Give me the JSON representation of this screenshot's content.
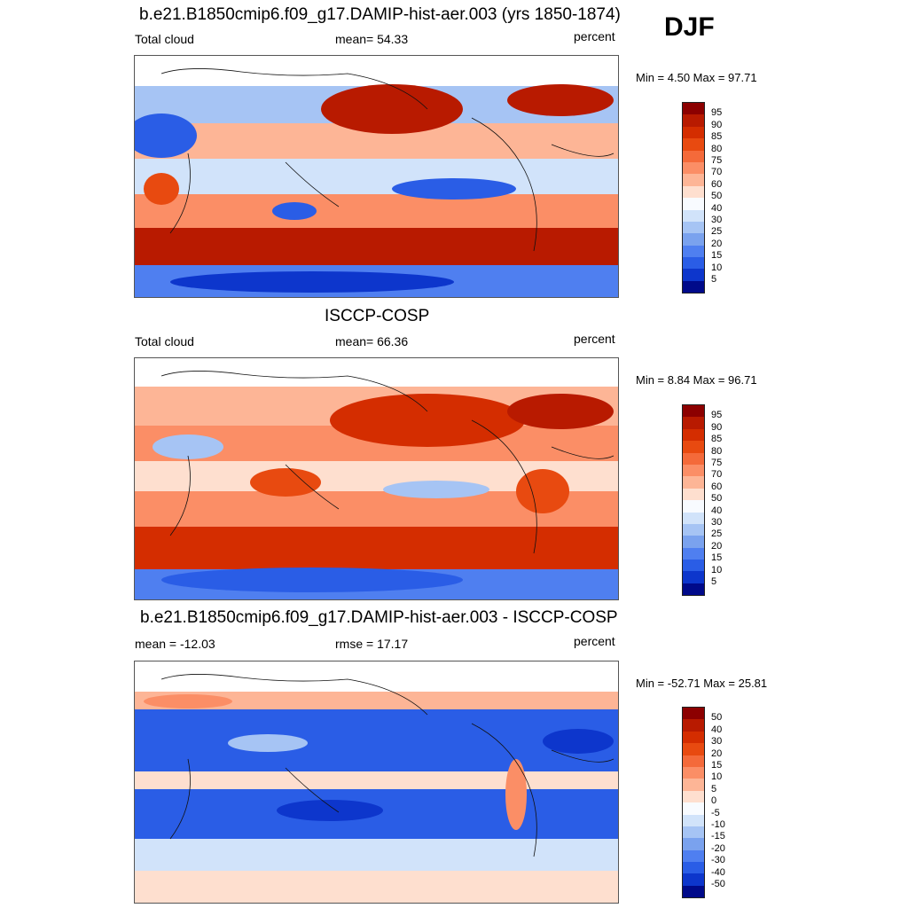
{
  "season": "DJF",
  "panels": [
    {
      "title": "b.e21.B1850cmip6.f09_g17.DAMIP-hist-aer.003 (yrs 1850-1874)",
      "left_label": "Total cloud",
      "center_label": "mean=  54.33",
      "right_label": "percent",
      "minmax": "Min =   4.50 Max =  97.71",
      "levels": [
        "95",
        "90",
        "85",
        "80",
        "75",
        "70",
        "60",
        "50",
        "40",
        "30",
        "25",
        "20",
        "15",
        "10",
        "5"
      ],
      "colors": [
        "#8c0000",
        "#b81a00",
        "#d42d00",
        "#e84a10",
        "#f46a3a",
        "#fb8e66",
        "#fdb596",
        "#fedfcf",
        "#f8fbff",
        "#d1e3fa",
        "#a6c4f4",
        "#7aa2ee",
        "#4f7ff0",
        "#2a5de6",
        "#0d36cc",
        "#000a8a"
      ]
    },
    {
      "title": "ISCCP-COSP",
      "left_label": "Total cloud",
      "center_label": "mean=  66.36",
      "right_label": "percent",
      "minmax": "Min =   8.84 Max =  96.71",
      "levels": [
        "95",
        "90",
        "85",
        "80",
        "75",
        "70",
        "60",
        "50",
        "40",
        "30",
        "25",
        "20",
        "15",
        "10",
        "5"
      ],
      "colors": [
        "#8c0000",
        "#b81a00",
        "#d42d00",
        "#e84a10",
        "#f46a3a",
        "#fb8e66",
        "#fdb596",
        "#fedfcf",
        "#f8fbff",
        "#d1e3fa",
        "#a6c4f4",
        "#7aa2ee",
        "#4f7ff0",
        "#2a5de6",
        "#0d36cc",
        "#000a8a"
      ]
    },
    {
      "title": "b.e21.B1850cmip6.f09_g17.DAMIP-hist-aer.003 - ISCCP-COSP",
      "left_label": "mean = -12.03",
      "center_label": "rmse =  17.17",
      "right_label": "percent",
      "minmax": "Min = -52.71 Max =  25.81",
      "levels": [
        "50",
        "40",
        "30",
        "20",
        "15",
        "10",
        "5",
        "0",
        "-5",
        "-10",
        "-15",
        "-20",
        "-30",
        "-40",
        "-50"
      ],
      "colors": [
        "#8c0000",
        "#b81a00",
        "#d42d00",
        "#e84a10",
        "#f46a3a",
        "#fb8e66",
        "#fdb596",
        "#fedfcf",
        "#f8fbff",
        "#d1e3fa",
        "#a6c4f4",
        "#7aa2ee",
        "#4f7ff0",
        "#2a5de6",
        "#0d36cc",
        "#000a8a"
      ]
    }
  ]
}
